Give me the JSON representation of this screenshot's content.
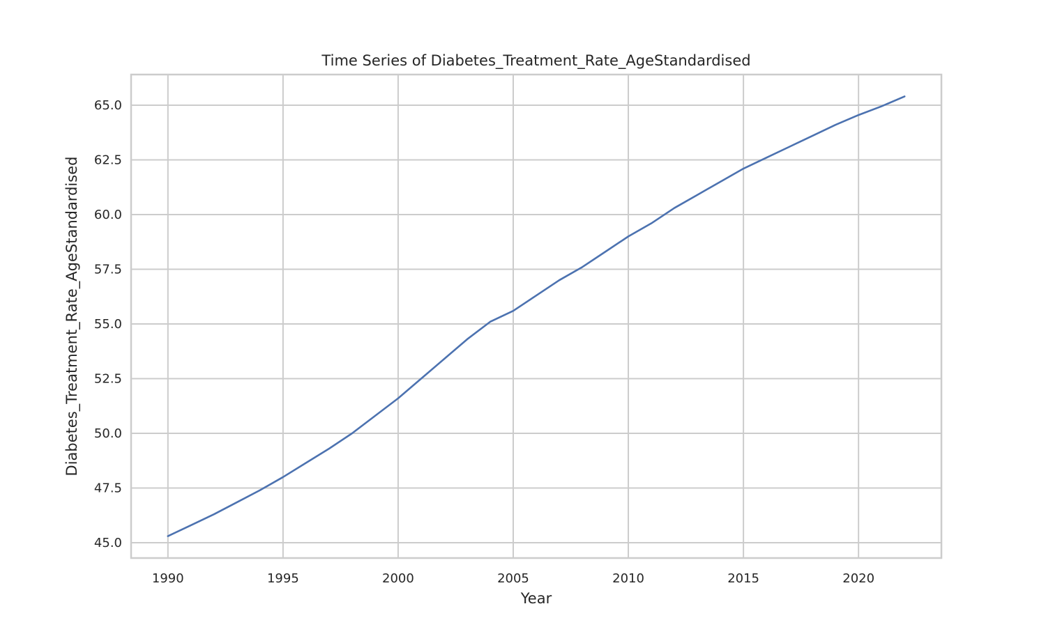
{
  "chart_data": {
    "type": "line",
    "title": "Time Series of Diabetes_Treatment_Rate_AgeStandardised",
    "xlabel": "Year",
    "ylabel": "Diabetes_Treatment_Rate_AgeStandardised",
    "xlim": [
      1988.4,
      2023.6
    ],
    "ylim": [
      44.3,
      66.4
    ],
    "x_ticks": [
      1990,
      1995,
      2000,
      2005,
      2010,
      2015,
      2020
    ],
    "y_ticks": [
      45.0,
      47.5,
      50.0,
      52.5,
      55.0,
      57.5,
      60.0,
      62.5,
      65.0
    ],
    "y_tick_labels": [
      "45.0",
      "47.5",
      "50.0",
      "52.5",
      "55.0",
      "57.5",
      "60.0",
      "62.5",
      "65.0"
    ],
    "grid": true,
    "color": "#4c72b0",
    "series": [
      {
        "x": [
          1990,
          1991,
          1992,
          1993,
          1994,
          1995,
          1996,
          1997,
          1998,
          1999,
          2000,
          2001,
          2002,
          2003,
          2004,
          2005,
          2006,
          2007,
          2008,
          2009,
          2010,
          2011,
          2012,
          2013,
          2014,
          2015,
          2016,
          2017,
          2018,
          2019,
          2020,
          2021,
          2022
        ],
        "values": [
          45.3,
          45.8,
          46.3,
          46.85,
          47.4,
          48.0,
          48.65,
          49.3,
          50.0,
          50.8,
          51.6,
          52.5,
          53.4,
          54.3,
          55.1,
          55.6,
          56.3,
          57.0,
          57.6,
          58.3,
          59.0,
          59.6,
          60.3,
          60.9,
          61.5,
          62.1,
          62.6,
          63.1,
          63.6,
          64.1,
          64.55,
          64.95,
          65.4
        ]
      }
    ]
  }
}
